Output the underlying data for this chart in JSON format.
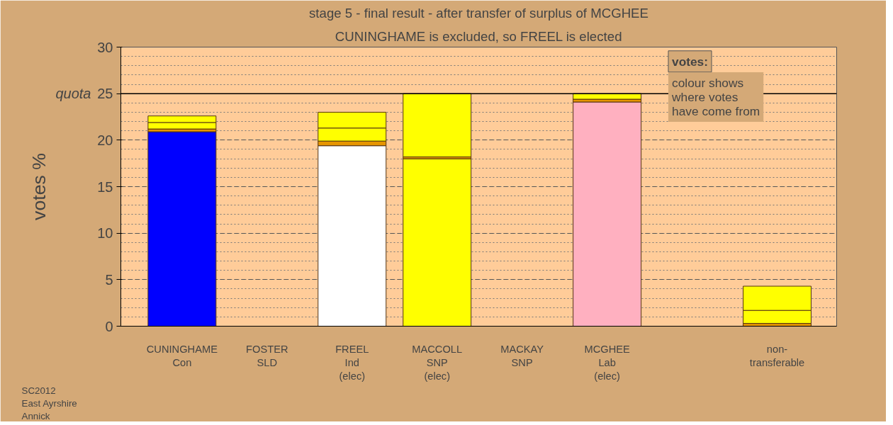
{
  "chart_data": {
    "type": "bar",
    "stacked": true,
    "title": "stage 5 - final result - after transfer of surplus of MCGHEE",
    "subtitle": "CUNINGHAME is excluded, so FREEL is elected",
    "ylabel": "votes %",
    "categories": [
      "CUNINGHAME\nCon",
      "FOSTER\nSLD",
      "FREEL\nInd\n(elec)",
      "MACCOLL\nSNP\n(elec)",
      "MACKAY\nSNP",
      "MCGHEE\nLab\n(elec)",
      null,
      "non-\ntransferable"
    ],
    "series": [
      {
        "values": [
          20.9,
          null,
          19.4,
          18.0,
          null,
          24.1,
          null,
          0.3
        ],
        "colors": [
          "#0000ff",
          "#ffffff",
          "#ffffff",
          "#ffff00",
          "#ffffff",
          "#ffb0c0",
          "#ffffff",
          "#e69500"
        ]
      },
      {
        "values": [
          0.3,
          null,
          0.5,
          0.2,
          null,
          0.3,
          null,
          1.4
        ],
        "colors": [
          "#e69500",
          "#e69500",
          "#e69500",
          "#e69500",
          "#e69500",
          "#e69500",
          "#e69500",
          "#ffff00"
        ]
      },
      {
        "values": [
          0.7,
          null,
          1.4,
          6.8,
          null,
          0.6,
          null,
          2.6
        ],
        "color": "#ffff00"
      },
      {
        "values": [
          0.7,
          null,
          1.7,
          null,
          null,
          null,
          null,
          null
        ],
        "color": "#ffff00"
      }
    ],
    "ylim": [
      0,
      30
    ],
    "yticks": [
      0,
      5,
      10,
      15,
      20,
      25,
      30
    ],
    "grid": "y",
    "ref_lines": [
      {
        "axis": "y",
        "value": 25,
        "label": "quota",
        "color": "#000000"
      }
    ],
    "annotations": [
      "votes:",
      "colour shows\nwhere votes\nhave come from",
      "SC2012\nEast Ayrshire\nAnnick"
    ]
  }
}
